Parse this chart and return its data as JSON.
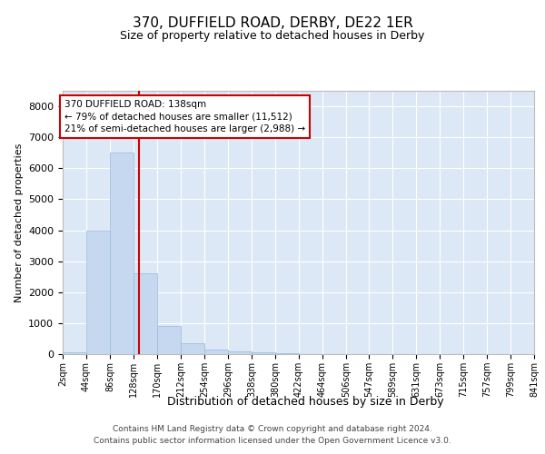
{
  "title": "370, DUFFIELD ROAD, DERBY, DE22 1ER",
  "subtitle": "Size of property relative to detached houses in Derby",
  "xlabel": "Distribution of detached houses by size in Derby",
  "ylabel": "Number of detached properties",
  "bar_color": "#c5d8ef",
  "bar_edge_color": "#9ab8d8",
  "background_color": "#dce8f5",
  "grid_color": "#ffffff",
  "bin_edges": [
    2,
    44,
    86,
    128,
    170,
    212,
    254,
    296,
    338,
    380,
    422,
    464,
    506,
    547,
    589,
    631,
    673,
    715,
    757,
    799,
    841
  ],
  "bar_heights": [
    50,
    4000,
    6500,
    2600,
    900,
    350,
    150,
    80,
    50,
    30,
    10,
    5,
    2,
    0,
    0,
    0,
    0,
    0,
    0,
    0
  ],
  "tick_labels": [
    "2sqm",
    "44sqm",
    "86sqm",
    "128sqm",
    "170sqm",
    "212sqm",
    "254sqm",
    "296sqm",
    "338sqm",
    "380sqm",
    "422sqm",
    "464sqm",
    "506sqm",
    "547sqm",
    "589sqm",
    "631sqm",
    "673sqm",
    "715sqm",
    "757sqm",
    "799sqm",
    "841sqm"
  ],
  "property_size": 138,
  "vline_color": "#cc0000",
  "annotation_line1": "370 DUFFIELD ROAD: 138sqm",
  "annotation_line2": "← 79% of detached houses are smaller (11,512)",
  "annotation_line3": "21% of semi-detached houses are larger (2,988) →",
  "annotation_box_color": "#cc0000",
  "ylim": [
    0,
    8500
  ],
  "yticks": [
    0,
    1000,
    2000,
    3000,
    4000,
    5000,
    6000,
    7000,
    8000
  ],
  "footer_line1": "Contains HM Land Registry data © Crown copyright and database right 2024.",
  "footer_line2": "Contains public sector information licensed under the Open Government Licence v3.0."
}
